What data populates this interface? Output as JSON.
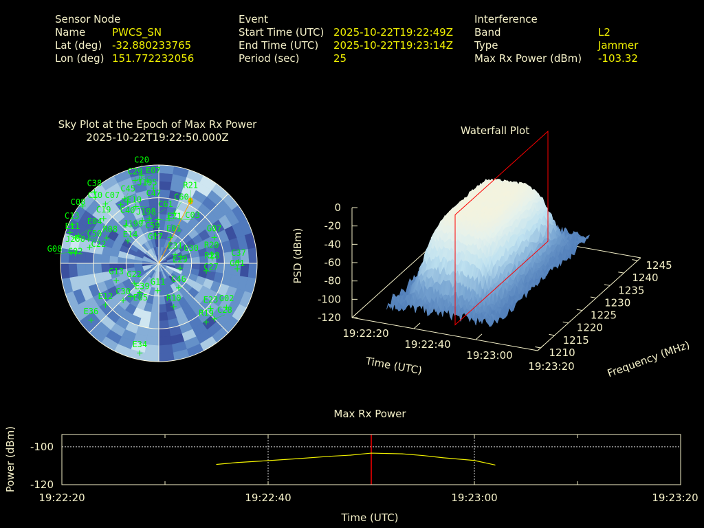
{
  "header": {
    "sensor": {
      "title": "Sensor Node",
      "rows": [
        {
          "label": "Name",
          "value": "PWCS_SN"
        },
        {
          "label": "Lat (deg)",
          "value": "-32.880233765"
        },
        {
          "label": "Lon (deg)",
          "value": "151.772232056"
        }
      ]
    },
    "event": {
      "title": "Event",
      "rows": [
        {
          "label": "Start Time (UTC)",
          "value": "2025-10-22T19:22:49Z"
        },
        {
          "label": "End Time (UTC)",
          "value": "2025-10-22T19:23:14Z"
        },
        {
          "label": "Period (sec)",
          "value": "25"
        }
      ]
    },
    "interference": {
      "title": "Interference",
      "rows": [
        {
          "label": "Band",
          "value": "L2"
        },
        {
          "label": "Type",
          "value": "Jammer"
        },
        {
          "label": "Max Rx Power (dBm)",
          "value": "-103.32"
        }
      ]
    }
  },
  "colors": {
    "label": "#f4f0c8",
    "value": "#f0f000",
    "satellite": "#00ff00",
    "jammer": "#ffa500",
    "marker": "#ff0000",
    "power_line": "#f0f000",
    "frame": "#f4f0c8"
  },
  "chart_data": [
    {
      "type": "scatter",
      "projection": "polar-sky",
      "title": "Sky Plot at the Epoch of Max Rx Power",
      "subtitle": "2025-10-22T19:22:50.000Z",
      "elevation_rings": [
        0,
        30,
        60
      ],
      "azimuth_lines": [
        0,
        45,
        90,
        135,
        180,
        225,
        270,
        315
      ],
      "background": "signal-strength heatmap (blue shades)",
      "jammer": {
        "az": 27,
        "el": 26
      },
      "satellites": [
        {
          "id": "C29",
          "az": 344,
          "el": 11
        },
        {
          "id": "C20",
          "az": 349,
          "el": 8
        },
        {
          "id": "E07",
          "az": 347,
          "el": 11
        },
        {
          "id": "J195",
          "az": 352,
          "el": 14
        },
        {
          "id": "C47",
          "az": 356,
          "el": 21
        },
        {
          "id": "C38",
          "az": 318,
          "el": 2
        },
        {
          "id": "C10",
          "az": 316,
          "el": 6
        },
        {
          "id": "C08",
          "az": 307,
          "el": 3
        },
        {
          "id": "C07",
          "az": 318,
          "el": 17
        },
        {
          "id": "C45",
          "az": 327,
          "el": 26
        },
        {
          "id": "E10",
          "az": 332,
          "el": 23
        },
        {
          "id": "C40",
          "az": 333,
          "el": 27
        },
        {
          "id": "J198",
          "az": 338,
          "el": 34
        },
        {
          "id": "C19",
          "az": 309,
          "el": 25
        },
        {
          "id": "C13",
          "az": 294,
          "el": 3
        },
        {
          "id": "E11",
          "az": 289,
          "el": 4
        },
        {
          "id": "J200",
          "az": 287,
          "el": 10
        },
        {
          "id": "C50",
          "az": 283,
          "el": 25
        },
        {
          "id": "C02",
          "az": 277,
          "el": 13
        },
        {
          "id": "G08",
          "az": 277,
          "el": 9
        },
        {
          "id": "R08",
          "az": 296,
          "el": 37
        },
        {
          "id": "J199",
          "az": 319,
          "el": 44
        },
        {
          "id": "E14",
          "az": 306,
          "el": 55
        },
        {
          "id": "C59",
          "az": 339,
          "el": 48
        },
        {
          "id": "C61",
          "az": 348,
          "el": 48
        },
        {
          "id": "E21",
          "az": 359,
          "el": 50
        },
        {
          "id": "G17",
          "az": 353,
          "el": 64
        },
        {
          "id": "E01",
          "az": 24,
          "el": 64
        },
        {
          "id": "C60",
          "az": 17,
          "el": 42
        },
        {
          "id": "C03",
          "az": 13,
          "el": 48
        },
        {
          "id": "R21",
          "az": 27,
          "el": 26
        },
        {
          "id": "G07",
          "az": 65,
          "el": 34
        },
        {
          "id": "R20",
          "az": 80,
          "el": 41
        },
        {
          "id": "R28",
          "az": 84,
          "el": 41
        },
        {
          "id": "E31",
          "az": 62,
          "el": 73
        },
        {
          "id": "G30",
          "az": 74,
          "el": 69
        },
        {
          "id": "E29",
          "az": 103,
          "el": 70
        },
        {
          "id": "C37",
          "az": 89,
          "el": 17
        },
        {
          "id": "G01",
          "az": 94,
          "el": 18
        },
        {
          "id": "C27",
          "az": 99,
          "el": 46
        },
        {
          "id": "G13",
          "az": 248,
          "el": 48
        },
        {
          "id": "G22",
          "az": 231,
          "el": 61
        },
        {
          "id": "E39",
          "az": 213,
          "el": 58
        },
        {
          "id": "G11",
          "az": 182,
          "el": 65
        },
        {
          "id": "C46",
          "az": 141,
          "el": 61
        },
        {
          "id": "E04",
          "az": 289,
          "el": 12
        },
        {
          "id": "C22",
          "az": 289,
          "el": 22
        },
        {
          "id": "C30",
          "az": 224,
          "el": 43
        },
        {
          "id": "E05",
          "az": 220,
          "el": 50
        },
        {
          "id": "E12",
          "az": 232,
          "el": 28
        },
        {
          "id": "R10",
          "az": 161,
          "el": 48
        },
        {
          "id": "R19",
          "az": 141,
          "el": 21
        },
        {
          "id": "G02",
          "az": 123,
          "el": 16
        },
        {
          "id": "C28",
          "az": 135,
          "el": 18
        },
        {
          "id": "E23",
          "az": 131,
          "el": 27
        },
        {
          "id": "E36",
          "az": 230,
          "el": 9
        },
        {
          "id": "E34",
          "az": 192,
          "el": 6
        }
      ]
    },
    {
      "type": "surface",
      "title": "Waterfall Plot",
      "xlabel": "Time (UTC)",
      "ylabel": "Frequency (MHz)",
      "zlabel": "PSD (dBm)",
      "xticks": [
        "19:22:20",
        "19:22:40",
        "19:23:00",
        "19:23:20"
      ],
      "yticks": [
        "1210",
        "1215",
        "1220",
        "1225",
        "1230",
        "1235",
        "1240",
        "1245"
      ],
      "zticks": [
        "0",
        "-20",
        "-40",
        "-60",
        "-80",
        "-100",
        "-120"
      ],
      "zlim": [
        -120,
        0
      ],
      "marker_time": "19:22:50"
    },
    {
      "type": "line",
      "title": "Max Rx Power",
      "xlabel": "Time (UTC)",
      "ylabel": "Power (dBm)",
      "xlim": [
        "19:22:20",
        "19:23:20"
      ],
      "ylim": [
        -120,
        -93.5
      ],
      "xticks": [
        "19:22:20",
        "19:22:40",
        "19:23:00",
        "19:23:20"
      ],
      "yticks": [
        "-100",
        "-120"
      ],
      "grid": true,
      "marker_time": "19:22:50",
      "x": [
        "19:22:35",
        "19:22:37",
        "19:22:40",
        "19:22:43",
        "19:22:46",
        "19:22:48",
        "19:22:50",
        "19:22:53",
        "19:22:55",
        "19:22:57",
        "19:23:00",
        "19:23:02"
      ],
      "y": [
        -109.3,
        -108.3,
        -107.3,
        -106.2,
        -105.0,
        -104.4,
        -103.32,
        -103.7,
        -104.6,
        -105.8,
        -107.2,
        -109.6
      ]
    }
  ]
}
